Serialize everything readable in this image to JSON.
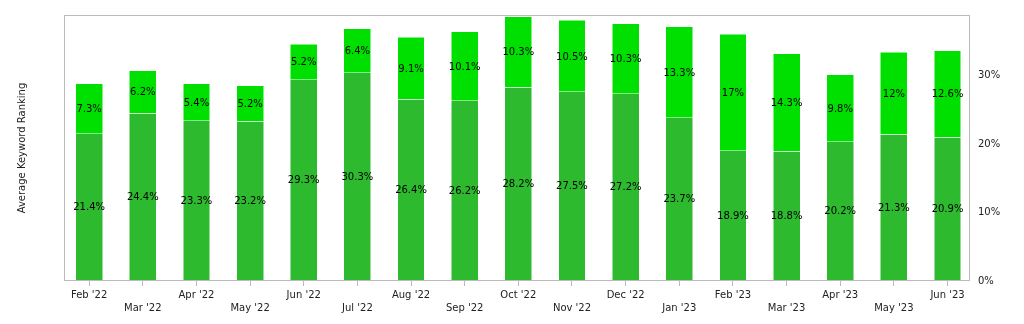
{
  "chart_data": {
    "type": "bar",
    "stacked": true,
    "ylabel": "Average Keyword Ranking",
    "categories": [
      "Feb '22",
      "Mar '22",
      "Apr '22",
      "May '22",
      "Jun '22",
      "Jul '22",
      "Aug '22",
      "Sep '22",
      "Oct '22",
      "Nov '22",
      "Dec '22",
      "Jan '23",
      "Feb '23",
      "Mar '23",
      "Apr '23",
      "May '23",
      "Jun '23"
    ],
    "series": [
      {
        "color": "#2eba2e",
        "values": [
          21.4,
          24.4,
          23.3,
          23.2,
          29.3,
          30.3,
          26.4,
          26.2,
          28.2,
          27.5,
          27.2,
          23.7,
          18.9,
          18.8,
          20.2,
          21.3,
          20.9
        ],
        "value_labels": [
          "21.4%",
          "24.4%",
          "23.3%",
          "23.2%",
          "29.3%",
          "30.3%",
          "26.4%",
          "26.2%",
          "28.2%",
          "27.5%",
          "27.2%",
          "23.7%",
          "18.9%",
          "18.8%",
          "20.2%",
          "21.3%",
          "20.9%"
        ]
      },
      {
        "color": "#00e000",
        "values": [
          7.3,
          6.2,
          5.4,
          5.2,
          5.2,
          6.4,
          9.1,
          10.1,
          10.3,
          10.5,
          10.3,
          13.3,
          17,
          14.3,
          9.8,
          12,
          12.6
        ],
        "value_labels": [
          "7.3%",
          "6.2%",
          "5.4%",
          "5.2%",
          "5.2%",
          "6.4%",
          "9.1%",
          "10.1%",
          "10.3%",
          "10.5%",
          "10.3%",
          "13.3%",
          "17%",
          "14.3%",
          "9.8%",
          "12%",
          "12.6%"
        ]
      }
    ],
    "ylim": [
      0,
      38.6
    ],
    "yticks": [
      {
        "value": 0,
        "label": "0%"
      },
      {
        "value": 10,
        "label": "10%"
      },
      {
        "value": 20,
        "label": "20%"
      },
      {
        "value": 30,
        "label": "30%"
      }
    ],
    "tick_labels": true
  }
}
